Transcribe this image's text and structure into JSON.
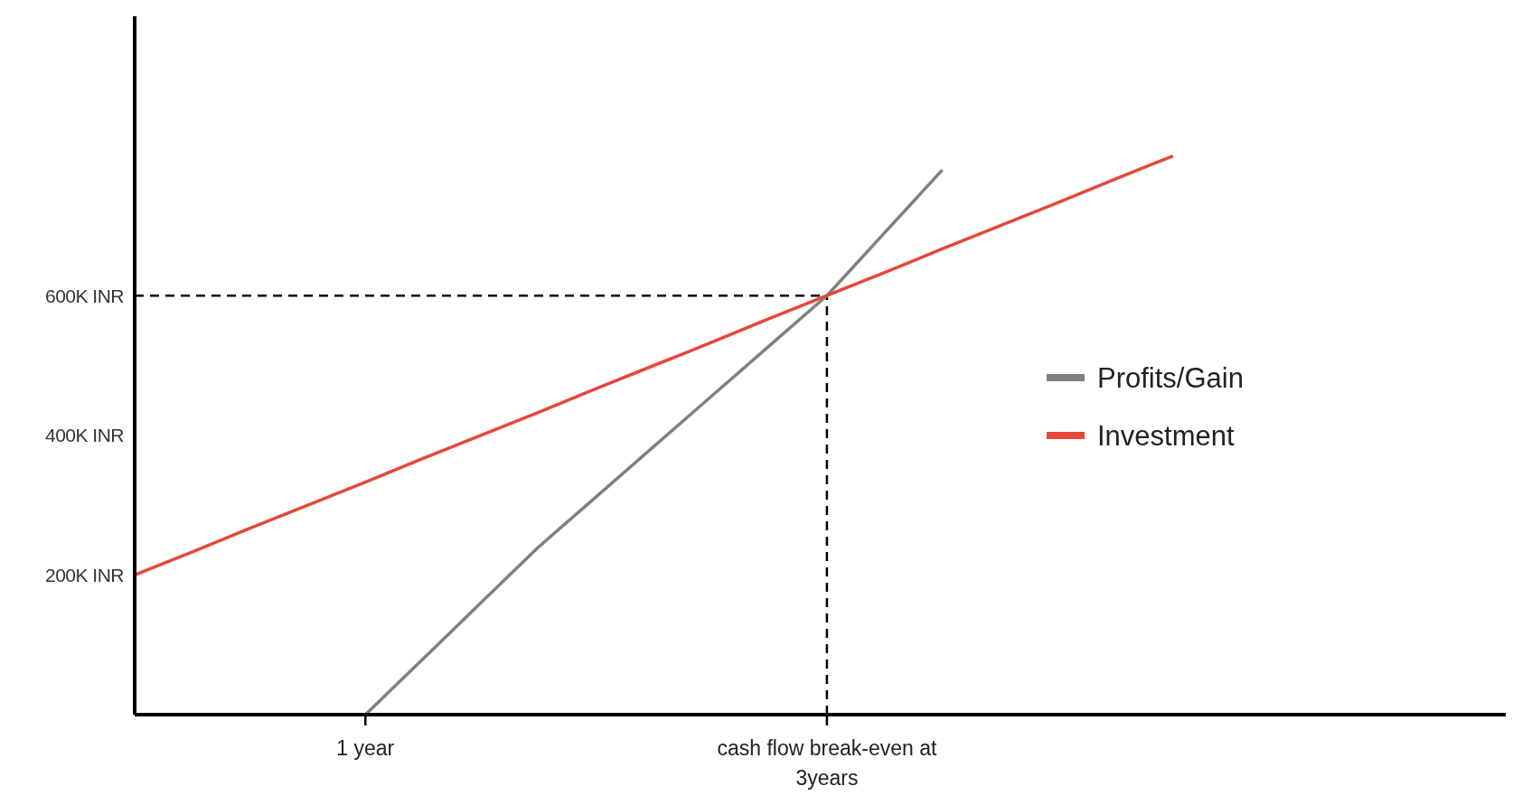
{
  "chart_data": {
    "type": "line",
    "categories": [
      null,
      null,
      null,
      null,
      "1 year",
      null,
      null,
      null,
      null,
      null,
      null,
      null,
      "cash flow break-even at 3years",
      null,
      null,
      null,
      null,
      null,
      null,
      null,
      null,
      null,
      null,
      null
    ],
    "series": [
      {
        "name": "Profits/Gain",
        "color": "#808080",
        "values": [
          null,
          null,
          null,
          null,
          0,
          80,
          160,
          240,
          312,
          384,
          456,
          528,
          600,
          690,
          780,
          null,
          null,
          null,
          null,
          null,
          null,
          null,
          null,
          null
        ]
      },
      {
        "name": "Investment",
        "color": "#e8463a",
        "values": [
          200,
          233,
          267,
          300,
          333,
          367,
          400,
          433,
          467,
          500,
          533,
          567,
          600,
          633,
          667,
          700,
          733,
          767,
          800,
          null,
          null,
          null,
          null,
          null
        ]
      }
    ],
    "ylim": [
      0,
      1000
    ],
    "yticks": [
      {
        "value": 200,
        "label": "200K INR"
      },
      {
        "value": 400,
        "label": "400K INR"
      },
      {
        "value": 600,
        "label": "600K INR"
      }
    ],
    "ref_lines": [
      {
        "axis": "y",
        "value": 600,
        "line_style": "dashed",
        "color": "#000000"
      },
      {
        "axis": "x",
        "value": "cash flow break-even at 3years",
        "line_style": "dashed",
        "color": "#000000"
      }
    ],
    "grid": false,
    "legend": "right",
    "marker": "none",
    "line_style": "solid"
  }
}
